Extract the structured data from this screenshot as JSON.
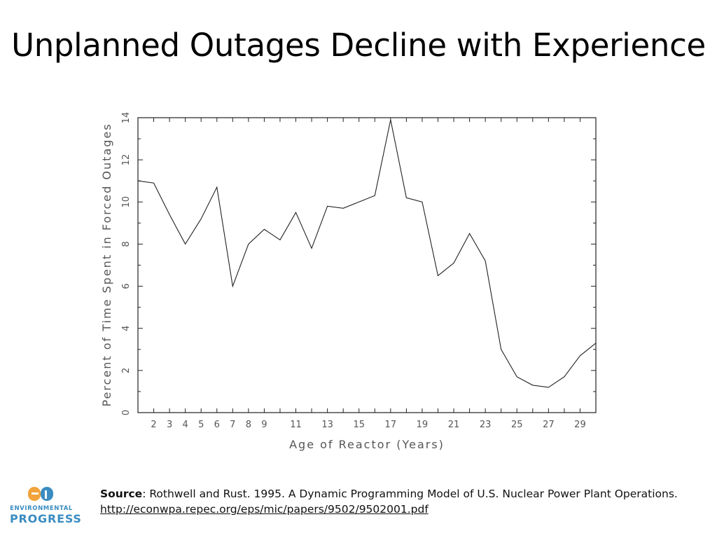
{
  "slide": {
    "title": "Unplanned Outages Decline with Experience"
  },
  "chart_data": {
    "type": "line",
    "title": "Unplanned Outages Decline with Experience",
    "xlabel": "Age of Reactor (Years)",
    "ylabel": "Percent of Time Spent in Forced Outages",
    "xlim": [
      1,
      30
    ],
    "ylim": [
      0,
      14
    ],
    "x_ticks": [
      2,
      3,
      4,
      5,
      6,
      7,
      8,
      9,
      11,
      13,
      15,
      17,
      19,
      21,
      23,
      25,
      27,
      29
    ],
    "y_ticks": [
      0,
      2,
      4,
      6,
      8,
      10,
      12,
      14
    ],
    "grid": false,
    "x": [
      1,
      2,
      3,
      4,
      5,
      6,
      7,
      8,
      9,
      10,
      11,
      12,
      13,
      14,
      15,
      16,
      17,
      18,
      19,
      20,
      21,
      22,
      23,
      24,
      25,
      26,
      27,
      28,
      29,
      30
    ],
    "series": [
      {
        "name": "Forced outages",
        "values": [
          11.0,
          10.9,
          9.4,
          8.0,
          9.2,
          10.7,
          6.0,
          8.0,
          8.7,
          8.2,
          9.5,
          7.8,
          9.8,
          9.7,
          10.0,
          10.3,
          13.9,
          10.2,
          10.0,
          6.5,
          7.1,
          8.5,
          7.2,
          3.0,
          1.7,
          1.3,
          1.2,
          1.7,
          2.7,
          3.3
        ]
      }
    ]
  },
  "logo": {
    "line1": "ENVIRONMENTAL",
    "line2": "PROGRESS",
    "colors": {
      "orange": "#f2a33a",
      "blue": "#3a8cc1"
    }
  },
  "source": {
    "label": "Source",
    "text": ": Rothwell and Rust. 1995. A Dynamic Programming Model of U.S. Nuclear Power Plant Operations.",
    "url": "http://econwpa.repec.org/eps/mic/papers/9502/9502001.pdf"
  }
}
